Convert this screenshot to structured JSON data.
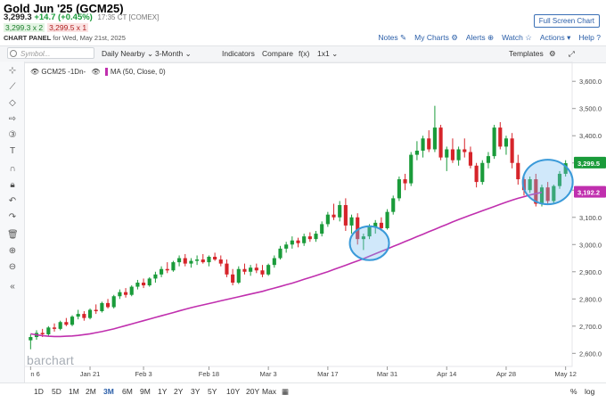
{
  "header": {
    "title": "Gold Jun '25 (GCM25)",
    "price": "3,299.3",
    "change": "+14.7 (+0.45%)",
    "time": "17:35 CT [COMEX]",
    "bid": "3,299.3 x 2",
    "ask": "3,299.5 x 1",
    "panel_label": "CHART PANEL",
    "panel_date": "for Wed, May 21st, 2025",
    "fullscreen_label": "Full Screen Chart"
  },
  "toplinks": {
    "notes": "Notes",
    "mycharts": "My Charts",
    "alerts": "Alerts",
    "watch": "Watch",
    "actions": "Actions",
    "help": "Help"
  },
  "toolbar": {
    "search_placeholder": "Symbol...",
    "interval": "Daily Nearby",
    "period": "3-Month",
    "indicators": "Indicators",
    "compare": "Compare",
    "fx": "f(x)",
    "layout": "1x1",
    "templates": "Templates"
  },
  "legend": {
    "symbol": "GCM25 -1Dn-",
    "ma": "MA (50, Close, 0)"
  },
  "watermark": "barchart",
  "ranges": [
    "1D",
    "5D",
    "1M",
    "2M",
    "3M",
    "6M",
    "9M",
    "1Y",
    "2Y",
    "3Y",
    "5Y",
    "10Y",
    "20Y",
    "Max"
  ],
  "active_range": "3M",
  "bottom_right": {
    "percent": "%",
    "log": "log"
  },
  "colors": {
    "up": "#1a9b3a",
    "down": "#d6242a",
    "ma": "#c02fae",
    "highlight": "#3a9ad9",
    "accent": "#2a5ea8"
  },
  "chart_data": {
    "type": "candlestick",
    "x_ticks": [
      "n 6",
      "Jan 21",
      "Feb 3",
      "Feb 18",
      "Mar 3",
      "Mar 17",
      "Mar 31",
      "Apr 14",
      "Apr 28",
      "May 12"
    ],
    "y_ticks": [
      2600,
      2700,
      2800,
      2900,
      3000,
      3100,
      3200,
      3300,
      3400,
      3500,
      3600
    ],
    "ylim": [
      2565,
      3640
    ],
    "last_price_label": "3,299.5",
    "ma_label": "3,192.2",
    "ma_series_name": "MA (50, Close, 0)",
    "candles": [
      [
        2648,
        2670,
        2615,
        2660
      ],
      [
        2660,
        2685,
        2650,
        2675
      ],
      [
        2675,
        2690,
        2660,
        2670
      ],
      [
        2670,
        2700,
        2665,
        2695
      ],
      [
        2695,
        2710,
        2680,
        2690
      ],
      [
        2690,
        2720,
        2685,
        2715
      ],
      [
        2715,
        2730,
        2700,
        2705
      ],
      [
        2705,
        2740,
        2700,
        2735
      ],
      [
        2735,
        2760,
        2725,
        2745
      ],
      [
        2745,
        2755,
        2720,
        2730
      ],
      [
        2730,
        2765,
        2725,
        2760
      ],
      [
        2760,
        2780,
        2745,
        2755
      ],
      [
        2755,
        2790,
        2750,
        2785
      ],
      [
        2785,
        2800,
        2765,
        2770
      ],
      [
        2770,
        2815,
        2765,
        2810
      ],
      [
        2810,
        2835,
        2800,
        2825
      ],
      [
        2825,
        2840,
        2805,
        2815
      ],
      [
        2815,
        2850,
        2810,
        2845
      ],
      [
        2845,
        2870,
        2835,
        2860
      ],
      [
        2860,
        2875,
        2840,
        2850
      ],
      [
        2850,
        2880,
        2845,
        2875
      ],
      [
        2875,
        2900,
        2860,
        2890
      ],
      [
        2890,
        2920,
        2880,
        2910
      ],
      [
        2910,
        2935,
        2895,
        2905
      ],
      [
        2905,
        2940,
        2900,
        2935
      ],
      [
        2935,
        2960,
        2920,
        2950
      ],
      [
        2950,
        2965,
        2920,
        2930
      ],
      [
        2930,
        2950,
        2915,
        2940
      ],
      [
        2940,
        2960,
        2925,
        2945
      ],
      [
        2945,
        2965,
        2930,
        2935
      ],
      [
        2935,
        2960,
        2920,
        2955
      ],
      [
        2955,
        2970,
        2940,
        2945
      ],
      [
        2945,
        2960,
        2920,
        2930
      ],
      [
        2930,
        2945,
        2880,
        2890
      ],
      [
        2890,
        2910,
        2850,
        2860
      ],
      [
        2860,
        2920,
        2855,
        2910
      ],
      [
        2910,
        2930,
        2890,
        2900
      ],
      [
        2900,
        2925,
        2885,
        2915
      ],
      [
        2915,
        2930,
        2895,
        2905
      ],
      [
        2905,
        2925,
        2880,
        2890
      ],
      [
        2890,
        2930,
        2885,
        2925
      ],
      [
        2925,
        2960,
        2915,
        2950
      ],
      [
        2950,
        2995,
        2945,
        2985
      ],
      [
        2985,
        3010,
        2970,
        3000
      ],
      [
        3000,
        3030,
        2985,
        3015
      ],
      [
        3015,
        3025,
        2990,
        3005
      ],
      [
        3005,
        3040,
        2995,
        3030
      ],
      [
        3030,
        3045,
        3010,
        3020
      ],
      [
        3020,
        3050,
        3010,
        3040
      ],
      [
        3040,
        3085,
        3030,
        3075
      ],
      [
        3075,
        3120,
        3065,
        3110
      ],
      [
        3110,
        3150,
        3090,
        3100
      ],
      [
        3100,
        3160,
        3085,
        3145
      ],
      [
        3145,
        3170,
        3050,
        3070
      ],
      [
        3070,
        3110,
        3040,
        3100
      ],
      [
        3100,
        3115,
        3000,
        3020
      ],
      [
        3020,
        3040,
        2980,
        3030
      ],
      [
        3030,
        3075,
        3020,
        3065
      ],
      [
        3065,
        3090,
        3040,
        3080
      ],
      [
        3080,
        3100,
        3050,
        3060
      ],
      [
        3060,
        3130,
        3055,
        3120
      ],
      [
        3120,
        3180,
        3110,
        3170
      ],
      [
        3170,
        3250,
        3160,
        3240
      ],
      [
        3240,
        3260,
        3200,
        3225
      ],
      [
        3225,
        3340,
        3215,
        3330
      ],
      [
        3330,
        3380,
        3310,
        3345
      ],
      [
        3345,
        3400,
        3320,
        3390
      ],
      [
        3390,
        3420,
        3340,
        3350
      ],
      [
        3350,
        3510,
        3340,
        3430
      ],
      [
        3430,
        3440,
        3310,
        3320
      ],
      [
        3320,
        3360,
        3270,
        3350
      ],
      [
        3350,
        3390,
        3300,
        3310
      ],
      [
        3310,
        3360,
        3290,
        3350
      ],
      [
        3350,
        3390,
        3320,
        3340
      ],
      [
        3340,
        3360,
        3280,
        3290
      ],
      [
        3290,
        3300,
        3210,
        3230
      ],
      [
        3230,
        3310,
        3220,
        3300
      ],
      [
        3300,
        3340,
        3280,
        3325
      ],
      [
        3325,
        3440,
        3315,
        3430
      ],
      [
        3430,
        3450,
        3350,
        3360
      ],
      [
        3360,
        3400,
        3330,
        3390
      ],
      [
        3390,
        3410,
        3280,
        3300
      ],
      [
        3300,
        3330,
        3220,
        3240
      ],
      [
        3240,
        3260,
        3180,
        3200
      ],
      [
        3200,
        3250,
        3190,
        3240
      ],
      [
        3240,
        3260,
        3140,
        3150
      ],
      [
        3150,
        3220,
        3140,
        3210
      ],
      [
        3210,
        3230,
        3150,
        3160
      ],
      [
        3160,
        3220,
        3150,
        3215
      ],
      [
        3215,
        3270,
        3205,
        3260
      ],
      [
        3260,
        3310,
        3250,
        3299
      ]
    ],
    "ma": [
      2672,
      2668,
      2665,
      2663,
      2662,
      2662,
      2663,
      2664,
      2666,
      2669,
      2672,
      2676,
      2680,
      2685,
      2690,
      2696,
      2702,
      2708,
      2714,
      2720,
      2726,
      2732,
      2738,
      2744,
      2750,
      2756,
      2762,
      2768,
      2773,
      2778,
      2783,
      2788,
      2793,
      2798,
      2803,
      2808,
      2813,
      2818,
      2823,
      2828,
      2834,
      2840,
      2846,
      2852,
      2858,
      2865,
      2872,
      2879,
      2886,
      2893,
      2900,
      2908,
      2916,
      2924,
      2932,
      2940,
      2948,
      2957,
      2966,
      2975,
      2984,
      2993,
      3002,
      3011,
      3020,
      3029,
      3038,
      3047,
      3056,
      3065,
      3074,
      3083,
      3092,
      3100,
      3108,
      3116,
      3124,
      3132,
      3140,
      3148,
      3156,
      3163,
      3170,
      3176,
      3182,
      3187,
      3192
    ]
  }
}
